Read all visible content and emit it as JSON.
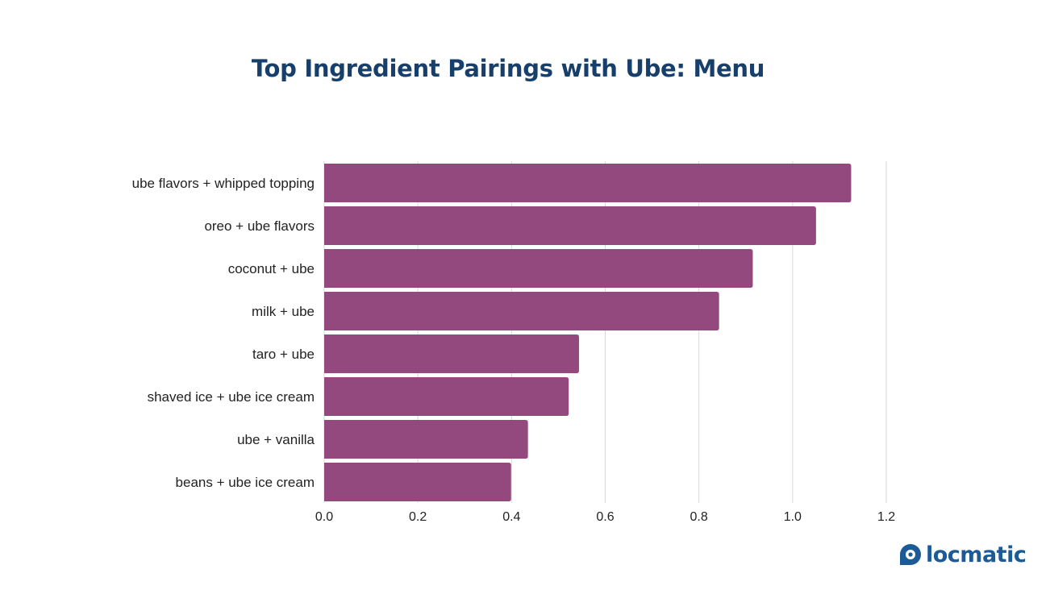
{
  "colors": {
    "title": "#173f6b",
    "bar": "#94497e",
    "grid": "#d9d9d9",
    "logo": "#1c5b96"
  },
  "chart_data": {
    "type": "bar",
    "orientation": "horizontal",
    "title": "Top Ingredient Pairings with Ube: Menu",
    "xlabel": "",
    "ylabel": "",
    "categories": [
      "ube flavors + whipped topping",
      "oreo + ube flavors",
      "coconut + ube",
      "milk + ube",
      "taro + ube",
      "shaved ice + ube ice cream",
      "ube + vanilla",
      "beans + ube ice cream"
    ],
    "values": [
      1.125,
      1.05,
      0.915,
      0.843,
      0.544,
      0.522,
      0.435,
      0.399
    ],
    "xlim": [
      0,
      1.2
    ],
    "xticks": [
      "0.0",
      "0.2",
      "0.4",
      "0.6",
      "0.8",
      "1.0",
      "1.2"
    ],
    "grid": "vertical",
    "legend": "none"
  },
  "logo": {
    "icon": "locmatic-pin-icon",
    "text": "locmatic"
  }
}
